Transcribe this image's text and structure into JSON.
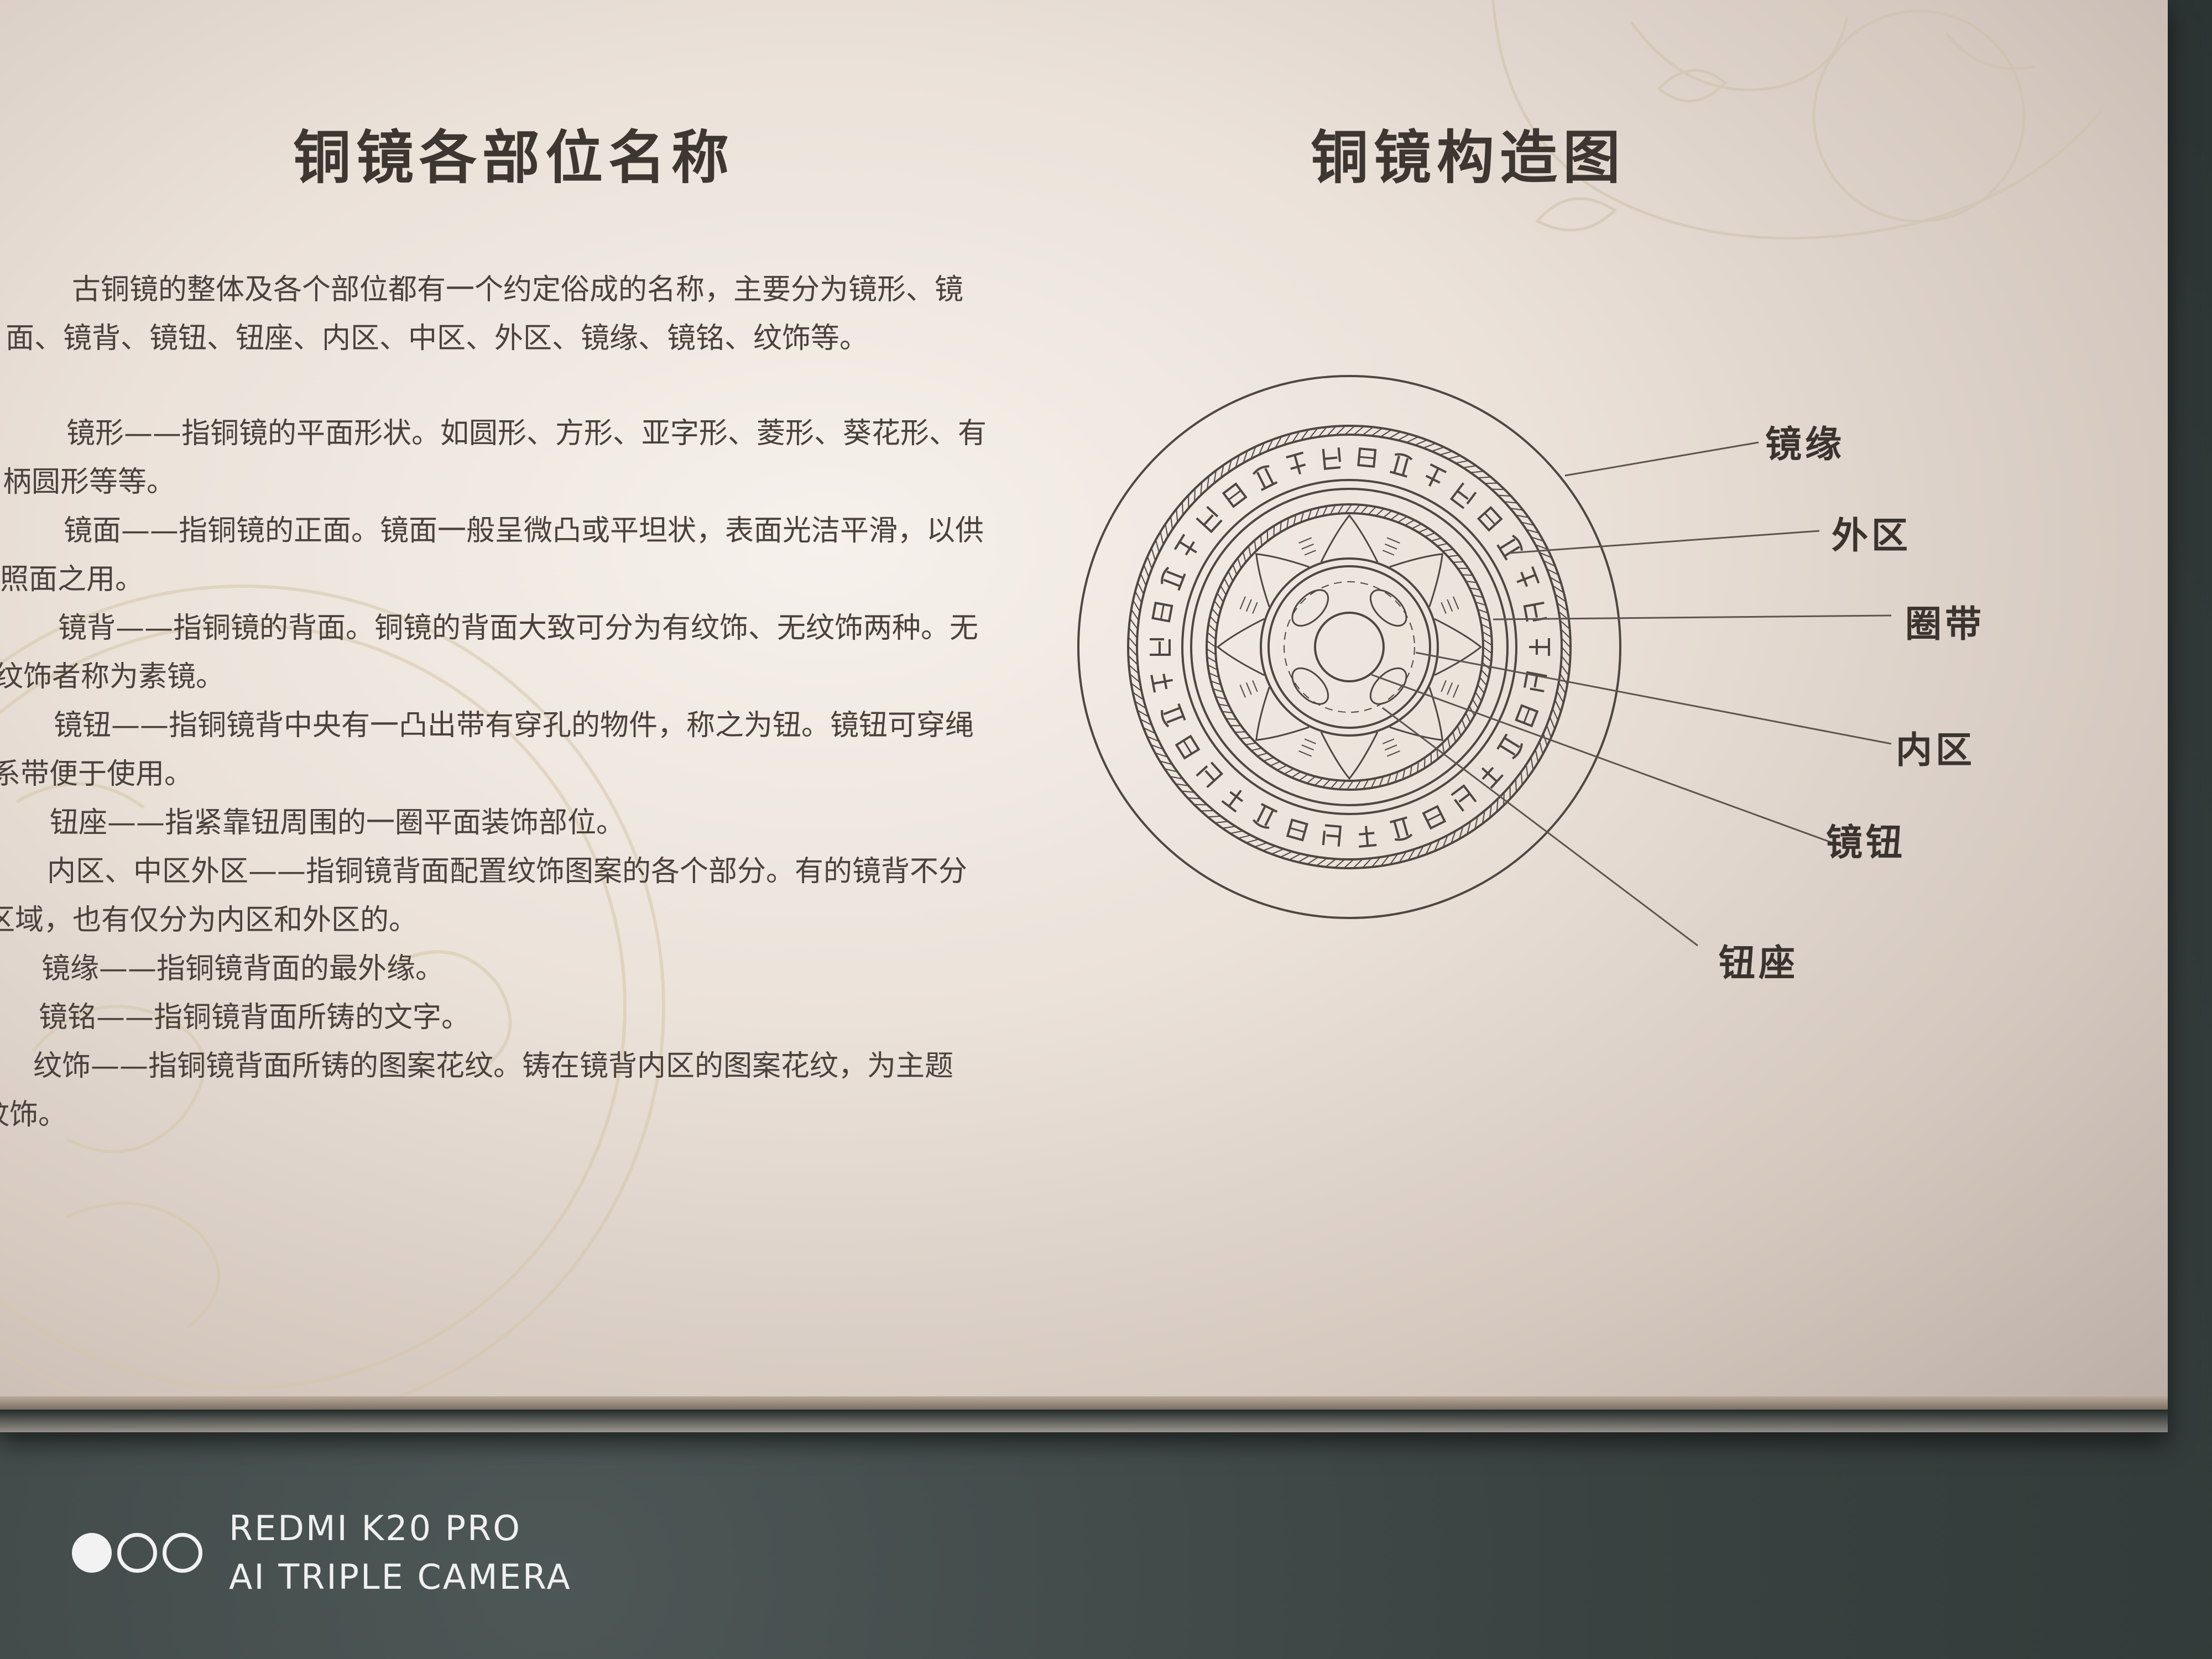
{
  "left": {
    "title": "铜镜各部位名称",
    "intro": "古铜镜的整体及各个部位都有一个约定俗成的名称，主要分为镜形、镜面、镜背、镜钮、钮座、内区、中区、外区、镜缘、镜铭、纹饰等。",
    "entries": [
      {
        "def": "镜形——指铜镜的平面形状。如圆形、方形、亚字形、菱形、葵花形、有柄圆形等等。"
      },
      {
        "def": "镜面——指铜镜的正面。镜面一般呈微凸或平坦状，表面光洁平滑，以供照面之用。"
      },
      {
        "def": "镜背——指铜镜的背面。铜镜的背面大致可分为有纹饰、无纹饰两种。无纹饰者称为素镜。"
      },
      {
        "def": "镜钮——指铜镜背中央有一凸出带有穿孔的物件，称之为钮。镜钮可穿绳系带便于使用。"
      },
      {
        "def": "钮座——指紧靠钮周围的一圈平面装饰部位。"
      },
      {
        "def": "内区、中区外区——指铜镜背面配置纹饰图案的各个部分。有的镜背不分区域，也有仅分为内区和外区的。"
      },
      {
        "def": "镜缘——指铜镜背面的最外缘。"
      },
      {
        "def": "镜铭——指铜镜背面所铸的文字。"
      },
      {
        "def": "纹饰——指铜镜背面所铸的图案花纹。铸在镜背内区的图案花纹，为主题纹饰。"
      }
    ]
  },
  "right": {
    "title": "铜镜构造图",
    "labels": {
      "rim": "镜缘",
      "outer_zone": "外区",
      "ring_band": "圈带",
      "inner_zone": "内区",
      "knob": "镜钮",
      "knob_base": "钮座"
    }
  },
  "watermark": {
    "line1": "REDMI K20 PRO",
    "line2": "AI TRIPLE CAMERA"
  },
  "colors": {
    "panel": "#ece3da",
    "text": "#4a413b",
    "title": "#3d3631",
    "line": "#6b625b",
    "wall": "#3d4545"
  }
}
